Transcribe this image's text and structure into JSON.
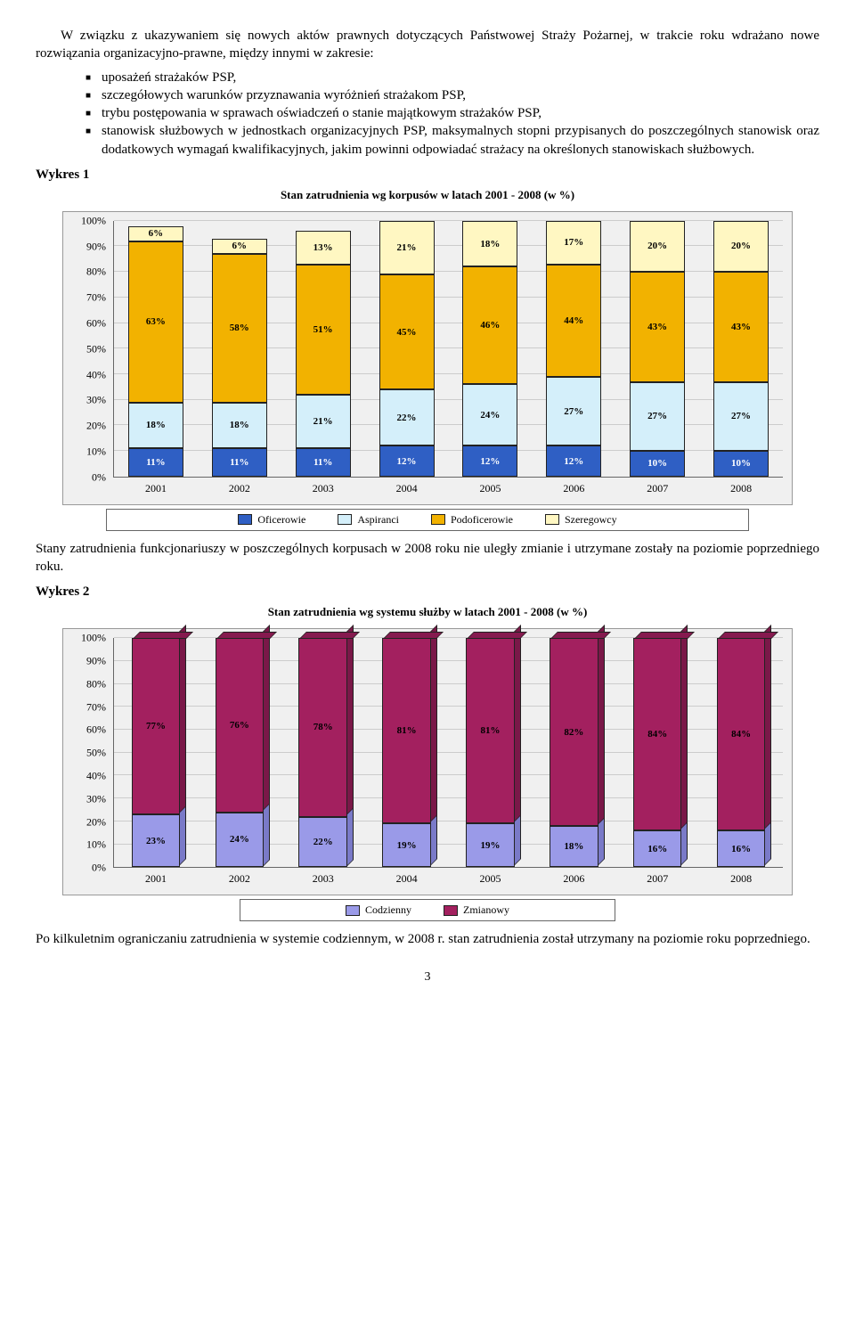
{
  "intro": "W związku z ukazywaniem się nowych aktów prawnych dotyczących Państwowej Straży Pożarnej, w trakcie roku wdrażano nowe rozwiązania organizacyjno-prawne, między innymi w zakresie:",
  "bullets": [
    "uposażeń strażaków PSP,",
    "szczegółowych warunków przyznawania wyróżnień strażakom PSP,",
    "trybu postępowania w sprawach oświadczeń o stanie majątkowym strażaków PSP,",
    "stanowisk służbowych w jednostkach organizacyjnych PSP, maksymalnych stopni przypisanych do poszczególnych stanowisk oraz dodatkowych wymagań kwalifikacyjnych, jakim powinni odpowiadać strażacy na określonych stanowiskach służbowych."
  ],
  "wykres1_label": "Wykres 1",
  "chart1": {
    "title": "Stan zatrudnienia wg korpusów w latach 2001 - 2008 (w %)",
    "y_max": 100,
    "y_step": 10,
    "categories": [
      "2001",
      "2002",
      "2003",
      "2004",
      "2005",
      "2006",
      "2007",
      "2008"
    ],
    "series": [
      {
        "name": "Oficerowie",
        "color": "#2f5fc4",
        "values": [
          11,
          11,
          11,
          12,
          12,
          12,
          10,
          10
        ]
      },
      {
        "name": "Aspiranci",
        "color": "#d4effa",
        "values": [
          18,
          18,
          21,
          22,
          24,
          27,
          27,
          27
        ]
      },
      {
        "name": "Podoficerowie",
        "color": "#f2b200",
        "values": [
          63,
          58,
          51,
          45,
          46,
          44,
          43,
          43
        ]
      },
      {
        "name": "Szeregowcy",
        "color": "#fff7c2",
        "values": [
          6,
          6,
          13,
          21,
          18,
          17,
          20,
          20
        ]
      }
    ]
  },
  "mid_para": "Stany zatrudnienia funkcjonariuszy w poszczególnych korpusach w 2008 roku nie uległy zmianie i utrzymane zostały na poziomie poprzedniego roku.",
  "wykres2_label": "Wykres 2",
  "chart2": {
    "title": "Stan zatrudnienia wg systemu służby w latach 2001 - 2008 (w %)",
    "y_max": 100,
    "y_step": 10,
    "categories": [
      "2001",
      "2002",
      "2003",
      "2004",
      "2005",
      "2006",
      "2007",
      "2008"
    ],
    "series": [
      {
        "name": "Codzienny",
        "color": "#9a9ae8",
        "shade": "#7a7ac8",
        "values": [
          23,
          24,
          22,
          19,
          19,
          18,
          16,
          16
        ]
      },
      {
        "name": "Zmianowy",
        "color": "#a3205f",
        "shade": "#7a1848",
        "values": [
          77,
          76,
          78,
          81,
          81,
          82,
          84,
          84
        ]
      }
    ]
  },
  "end_para": "Po kilkuletnim ograniczaniu zatrudnienia w systemie codziennym, w 2008 r. stan zatrudnienia został utrzymany na poziomie roku poprzedniego.",
  "page_num": "3"
}
